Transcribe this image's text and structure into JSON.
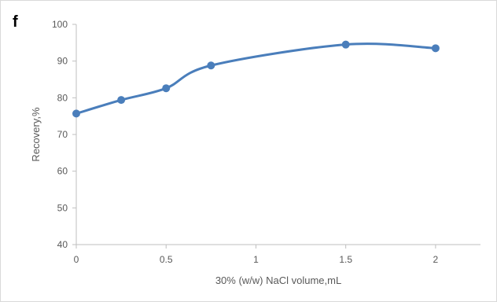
{
  "panel_label": "f",
  "chart_data": {
    "type": "line",
    "xlabel": "30% (w/w) NaCl volume,mL",
    "ylabel": "Recovery,%",
    "xlim": [
      0,
      2.25
    ],
    "ylim": [
      40,
      100
    ],
    "x_ticks": [
      0,
      0.5,
      1,
      1.5,
      2
    ],
    "x_tick_labels": [
      "0",
      "0.5",
      "1",
      "1.5",
      "2"
    ],
    "y_ticks": [
      40,
      50,
      60,
      70,
      80,
      90,
      100
    ],
    "y_tick_labels": [
      "40",
      "50",
      "60",
      "70",
      "80",
      "90",
      "100"
    ],
    "grid": false,
    "smooth": true,
    "series": [
      {
        "color": "#4a7ebb",
        "x": [
          0,
          0.25,
          0.5,
          0.75,
          1.5,
          2
        ],
        "values": [
          75.7,
          79.4,
          82.6,
          88.8,
          94.5,
          93.5
        ]
      }
    ]
  }
}
